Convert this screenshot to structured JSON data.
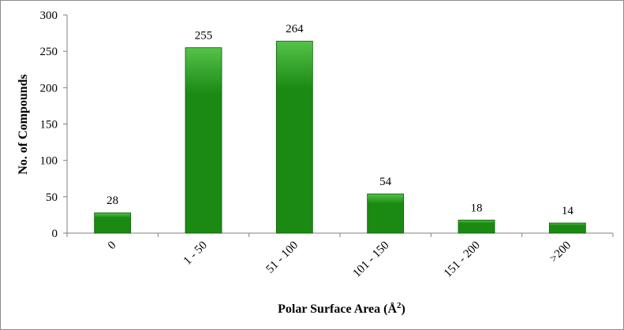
{
  "chart_data": {
    "type": "bar",
    "title": "",
    "xlabel_main": "Polar Surface Area (Å",
    "xlabel_sup": "2",
    "xlabel_end": ")",
    "ylabel": "No. of Compounds",
    "categories": [
      "0",
      "1 - 50",
      "51 - 100",
      "101 - 150",
      "151 - 200",
      ">200"
    ],
    "values": [
      28,
      255,
      264,
      54,
      18,
      14
    ],
    "data_labels": [
      "28",
      "255",
      "264",
      "54",
      "18",
      "14"
    ],
    "ylim": [
      0,
      300
    ],
    "yticks": [
      0,
      50,
      100,
      150,
      200,
      250,
      300
    ],
    "grid": false,
    "legend": "none",
    "bar_color": "#1a8a12",
    "bar_top_color": "#55c24a",
    "bar_edge_color": "#0f5c0a"
  }
}
